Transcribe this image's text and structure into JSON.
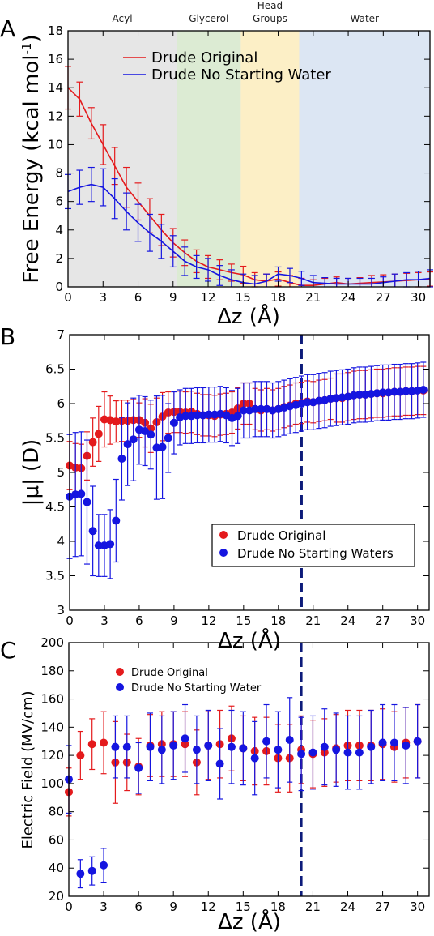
{
  "colors": {
    "red": "#e41a1c",
    "blue": "#1515e0",
    "acyl": "#e6e6e6",
    "glycerol": "#dcebd3",
    "head": "#fcefc6",
    "water": "#dce6f3",
    "dash": "#0d1b7a"
  },
  "chart_data": [
    {
      "type": "line",
      "panel_label": "A",
      "xlabel": "Δz (Å)",
      "ylabel": "Free Energy (kcal mol",
      "ylabel_sup": "-1",
      "ylabel_close": ")",
      "xlim": [
        0,
        31
      ],
      "ylim": [
        0,
        18
      ],
      "xticks": [
        0,
        3,
        6,
        9,
        12,
        15,
        18,
        21,
        24,
        27,
        30
      ],
      "yticks": [
        0,
        2,
        4,
        6,
        8,
        10,
        12,
        14,
        16,
        18
      ],
      "regions": [
        {
          "label": "Acyl",
          "from": 0,
          "to": 9.3,
          "color": "#e6e6e6"
        },
        {
          "label": "Glycerol",
          "from": 9.3,
          "to": 14.8,
          "color": "#dcebd3"
        },
        {
          "label": "Head",
          "label2": "Groups",
          "from": 14.8,
          "to": 19.8,
          "color": "#fcefc6"
        },
        {
          "label": "Water",
          "from": 19.8,
          "to": 31,
          "color": "#dce6f3"
        }
      ],
      "legend_position": "top-left",
      "series": [
        {
          "name": "Drude Original",
          "color": "#e41a1c",
          "x": [
            0,
            1,
            2,
            3,
            4,
            5,
            6,
            7,
            8,
            9,
            10,
            11,
            12,
            13,
            14,
            15,
            16,
            17,
            18,
            19,
            20,
            21,
            22,
            23,
            24,
            25,
            26,
            27,
            28,
            29,
            30,
            31
          ],
          "y": [
            14.0,
            13.2,
            11.5,
            10.0,
            8.5,
            7.0,
            6.0,
            5.0,
            4.0,
            3.1,
            2.4,
            1.8,
            1.4,
            1.2,
            1.0,
            0.85,
            0.5,
            0.4,
            0.55,
            0.3,
            0.1,
            0.1,
            0.2,
            0.3,
            0.2,
            0.25,
            0.3,
            0.35,
            0.4,
            0.45,
            0.5,
            0.55
          ],
          "err": [
            1.5,
            1.2,
            1.1,
            1.4,
            1.3,
            1.4,
            1.3,
            1.2,
            1.1,
            1.0,
            0.9,
            0.8,
            0.8,
            0.7,
            0.6,
            0.6,
            0.5,
            0.5,
            0.5,
            0.5,
            0.5,
            0.4,
            0.4,
            0.4,
            0.4,
            0.4,
            0.5,
            0.5,
            0.5,
            0.5,
            0.5,
            0.5
          ]
        },
        {
          "name": "Drude No Starting Water",
          "color": "#1515e0",
          "x": [
            0,
            1,
            2,
            3,
            4,
            5,
            6,
            7,
            8,
            9,
            10,
            11,
            12,
            13,
            14,
            15,
            16,
            17,
            18,
            19,
            20,
            21,
            22,
            23,
            24,
            25,
            26,
            27,
            28,
            29,
            30,
            31
          ],
          "y": [
            6.7,
            7.0,
            7.2,
            7.0,
            6.2,
            5.3,
            4.5,
            3.8,
            3.2,
            2.5,
            1.8,
            1.4,
            1.2,
            0.8,
            0.5,
            0.3,
            0.2,
            0.4,
            0.9,
            0.8,
            0.6,
            0.3,
            0.25,
            0.2,
            0.2,
            0.2,
            0.2,
            0.3,
            0.4,
            0.5,
            0.5,
            0.6
          ],
          "err": [
            1.2,
            1.2,
            1.2,
            1.3,
            1.4,
            1.3,
            1.3,
            1.3,
            1.2,
            1.1,
            1.0,
            0.8,
            0.8,
            0.7,
            0.7,
            0.6,
            0.6,
            0.5,
            0.5,
            0.5,
            0.5,
            0.5,
            0.4,
            0.4,
            0.4,
            0.4,
            0.4,
            0.4,
            0.5,
            0.5,
            0.6,
            0.6
          ]
        }
      ]
    },
    {
      "type": "scatter",
      "panel_label": "B",
      "xlabel": "Δz (Å)",
      "ylabel": "|μ| (D)",
      "xlim": [
        0,
        31
      ],
      "ylim": [
        3,
        7
      ],
      "xticks": [
        0,
        3,
        6,
        9,
        12,
        15,
        18,
        21,
        24,
        27,
        30
      ],
      "yticks": [
        3,
        3.5,
        4,
        4.5,
        5,
        5.5,
        6,
        6.5,
        7
      ],
      "vline_x": 20,
      "legend_position": "bottom-right",
      "series": [
        {
          "name": "Drude Original",
          "color": "#e41a1c",
          "x": [
            0,
            0.5,
            1,
            1.5,
            2,
            2.5,
            3,
            3.5,
            4,
            4.5,
            5,
            5.5,
            6,
            6.5,
            7,
            7.5,
            8,
            8.5,
            9,
            9.5,
            10,
            10.5,
            11,
            11.5,
            12,
            12.5,
            13,
            13.5,
            14,
            14.5,
            15,
            15.5,
            16,
            16.5,
            17,
            17.5,
            18,
            18.5,
            19,
            19.5,
            20,
            20.5,
            21,
            21.5,
            22,
            22.5,
            23,
            23.5,
            24,
            24.5,
            25,
            25.5,
            26,
            26.5,
            27,
            27.5,
            28,
            28.5,
            29,
            29.5,
            30,
            30.5
          ],
          "y": [
            5.1,
            5.07,
            5.06,
            5.24,
            5.44,
            5.56,
            5.77,
            5.76,
            5.74,
            5.75,
            5.75,
            5.76,
            5.76,
            5.72,
            5.64,
            5.73,
            5.81,
            5.87,
            5.88,
            5.88,
            5.87,
            5.88,
            5.85,
            5.83,
            5.83,
            5.82,
            5.84,
            5.85,
            5.87,
            5.93,
            6.0,
            6.0,
            5.92,
            5.9,
            5.92,
            5.9,
            5.92,
            5.95,
            5.97,
            6.0,
            6.01,
            6.03,
            6.02,
            6.04,
            6.05,
            6.07,
            6.08,
            6.08,
            6.1,
            6.12,
            6.13,
            6.13,
            6.14,
            6.15,
            6.15,
            6.16,
            6.17,
            6.17,
            6.18,
            6.18,
            6.19,
            6.19
          ],
          "err": [
            0.35,
            0.35,
            0.35,
            0.35,
            0.35,
            0.4,
            0.4,
            0.35,
            0.3,
            0.3,
            0.3,
            0.3,
            0.25,
            0.35,
            0.35,
            0.35,
            0.35,
            0.3,
            0.3,
            0.3,
            0.3,
            0.3,
            0.3,
            0.3,
            0.3,
            0.3,
            0.3,
            0.3,
            0.3,
            0.3,
            0.3,
            0.3,
            0.3,
            0.3,
            0.3,
            0.3,
            0.3,
            0.3,
            0.3,
            0.3,
            0.3,
            0.3,
            0.3,
            0.3,
            0.3,
            0.3,
            0.35,
            0.35,
            0.35,
            0.35,
            0.35,
            0.35,
            0.35,
            0.35,
            0.35,
            0.35,
            0.35,
            0.35,
            0.35,
            0.35,
            0.35,
            0.35
          ]
        },
        {
          "name": "Drude No Starting Waters",
          "color": "#1515e0",
          "x": [
            0,
            0.5,
            1,
            1.5,
            2,
            2.5,
            3,
            3.5,
            4,
            4.5,
            5,
            5.5,
            6,
            6.5,
            7,
            7.5,
            8,
            8.5,
            9,
            9.5,
            10,
            10.5,
            11,
            11.5,
            12,
            12.5,
            13,
            13.5,
            14,
            14.5,
            15,
            15.5,
            16,
            16.5,
            17,
            17.5,
            18,
            18.5,
            19,
            19.5,
            20,
            20.5,
            21,
            21.5,
            22,
            22.5,
            23,
            23.5,
            24,
            24.5,
            25,
            25.5,
            26,
            26.5,
            27,
            27.5,
            28,
            28.5,
            29,
            29.5,
            30,
            30.5
          ],
          "y": [
            4.65,
            4.68,
            4.69,
            4.57,
            4.15,
            3.94,
            3.94,
            3.96,
            4.3,
            5.2,
            5.41,
            5.48,
            5.62,
            5.6,
            5.55,
            5.36,
            5.37,
            5.5,
            5.72,
            5.8,
            5.82,
            5.82,
            5.83,
            5.83,
            5.84,
            5.84,
            5.85,
            5.83,
            5.79,
            5.82,
            5.9,
            5.9,
            5.92,
            5.92,
            5.92,
            5.9,
            5.92,
            5.94,
            5.96,
            5.98,
            6.0,
            6.02,
            6.02,
            6.04,
            6.05,
            6.07,
            6.08,
            6.09,
            6.1,
            6.12,
            6.13,
            6.13,
            6.14,
            6.15,
            6.16,
            6.16,
            6.17,
            6.17,
            6.18,
            6.18,
            6.19,
            6.2
          ],
          "err": [
            0.9,
            0.9,
            0.9,
            0.9,
            0.65,
            0.45,
            0.45,
            0.5,
            0.6,
            0.6,
            0.6,
            0.6,
            0.5,
            0.5,
            0.5,
            0.75,
            0.75,
            0.5,
            0.45,
            0.4,
            0.4,
            0.4,
            0.4,
            0.4,
            0.4,
            0.4,
            0.4,
            0.4,
            0.4,
            0.4,
            0.4,
            0.4,
            0.4,
            0.4,
            0.4,
            0.4,
            0.4,
            0.4,
            0.4,
            0.4,
            0.4,
            0.4,
            0.4,
            0.4,
            0.4,
            0.4,
            0.4,
            0.4,
            0.4,
            0.4,
            0.4,
            0.4,
            0.4,
            0.4,
            0.4,
            0.4,
            0.4,
            0.4,
            0.4,
            0.4,
            0.4,
            0.4
          ]
        }
      ]
    },
    {
      "type": "scatter",
      "panel_label": "C",
      "xlabel": "Δz (Å)",
      "ylabel": "Electric Field (MV/cm)",
      "xlim": [
        0,
        31
      ],
      "ylim": [
        20,
        200
      ],
      "xticks": [
        0,
        3,
        6,
        9,
        12,
        15,
        18,
        21,
        24,
        27,
        30
      ],
      "yticks": [
        20,
        40,
        60,
        80,
        100,
        120,
        140,
        160,
        180,
        200
      ],
      "vline_x": 20,
      "legend_position": "top-left",
      "series": [
        {
          "name": "Drude Original",
          "color": "#e41a1c",
          "x": [
            0,
            1,
            2,
            3,
            4,
            5,
            6,
            7,
            8,
            9,
            10,
            11,
            12,
            13,
            14,
            15,
            16,
            17,
            18,
            19,
            20,
            21,
            22,
            23,
            24,
            25,
            26,
            27,
            28,
            29,
            30
          ],
          "y": [
            94,
            120,
            128,
            129,
            115,
            115,
            112,
            127,
            128,
            128,
            128,
            115,
            127,
            128,
            132,
            125,
            123,
            123,
            118,
            118,
            124,
            121,
            122,
            125,
            127,
            127,
            127,
            128,
            126,
            129,
            130
          ],
          "err": [
            17,
            17,
            18,
            22,
            29,
            20,
            20,
            22,
            23,
            23,
            23,
            23,
            24,
            24,
            23,
            23,
            24,
            24,
            24,
            24,
            24,
            24,
            24,
            24,
            25,
            25,
            25,
            25,
            25,
            25,
            26
          ]
        },
        {
          "name": "Drude No Starting Water",
          "color": "#1515e0",
          "x": [
            0,
            1,
            2,
            3,
            4,
            5,
            6,
            7,
            8,
            9,
            10,
            11,
            12,
            13,
            14,
            15,
            16,
            17,
            18,
            19,
            20,
            21,
            22,
            23,
            24,
            25,
            26,
            27,
            28,
            29,
            30
          ],
          "y": [
            103,
            36,
            38,
            42,
            126,
            126,
            111,
            126,
            124,
            127,
            132,
            124,
            127,
            114,
            126,
            125,
            118,
            130,
            124,
            131,
            121,
            122,
            126,
            124,
            122,
            122,
            126,
            129,
            129,
            127,
            130
          ],
          "err": [
            24,
            10,
            10,
            12,
            22,
            22,
            18,
            24,
            24,
            24,
            24,
            24,
            25,
            25,
            26,
            26,
            26,
            26,
            27,
            30,
            26,
            26,
            27,
            26,
            26,
            26,
            26,
            27,
            27,
            27,
            26
          ]
        }
      ]
    }
  ]
}
